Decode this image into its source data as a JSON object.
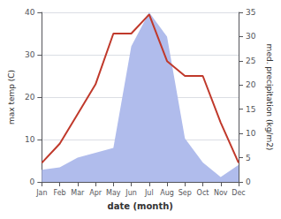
{
  "chart_data": {
    "type": "line",
    "categories": [
      "Jan",
      "Feb",
      "Mar",
      "Apr",
      "May",
      "Jun",
      "Jul",
      "Aug",
      "Sep",
      "Oct",
      "Nov",
      "Dec"
    ],
    "series": [
      {
        "type": "line",
        "color": "#c0392b",
        "values": [
          4.5,
          9.0,
          16.0,
          23.0,
          35.0,
          35.0,
          39.5,
          28.5,
          25.0,
          25.0,
          14.0,
          4.5
        ]
      },
      {
        "type": "area",
        "color": "#b0bcec",
        "axis": "y2",
        "values": [
          2.5,
          3.0,
          5.0,
          6.0,
          7.0,
          28.0,
          35.0,
          30.0,
          9.0,
          4.0,
          1.0,
          3.5
        ]
      }
    ],
    "xlabel": "date (month)",
    "ylabel": "max temp (C)",
    "y2label": "med. precipitation (kg/m2)",
    "ylim": [
      0,
      40
    ],
    "yticks": [
      0,
      10,
      20,
      30,
      40
    ],
    "y2lim": [
      0,
      35
    ],
    "y2ticks": [
      0,
      5,
      10,
      15,
      20,
      25,
      30,
      35
    ],
    "grid": true
  }
}
